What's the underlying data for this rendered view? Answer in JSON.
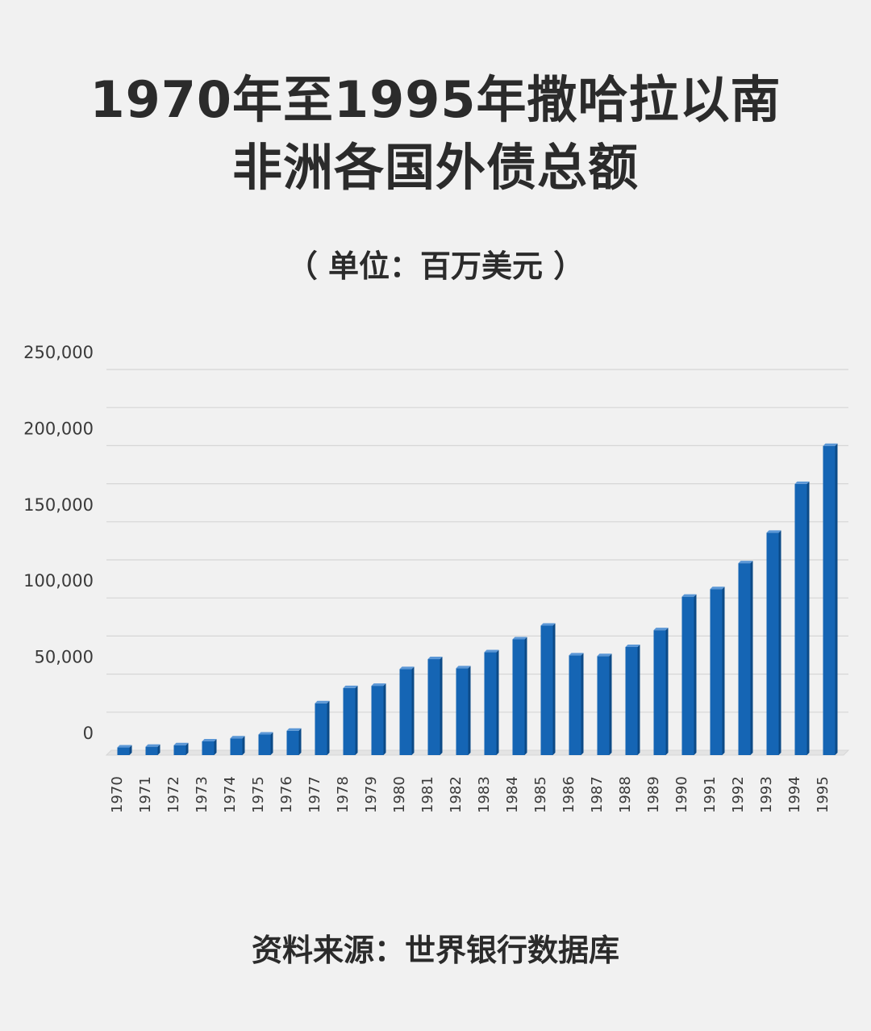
{
  "title_line1": "1970年至1995年撒哈拉以南",
  "title_line2": "非洲各国外债总额",
  "subtitle": "（ 单位：百万美元 ）",
  "source": "资料来源：世界银行数据库",
  "colors": {
    "background": "#f1f1f1",
    "bar_front": "#1565b4",
    "bar_side": "#0c4a87",
    "bar_top": "#5b97d6",
    "grid": "#d6d6d6",
    "text": "#2b2b2b"
  },
  "chart_data": {
    "type": "bar",
    "title": "1970年至1995年撒哈拉以南非洲各国外债总额",
    "subtitle": "（ 单位：百万美元 ）",
    "xlabel": "",
    "ylabel": "",
    "ylim": [
      0,
      250000
    ],
    "grid": true,
    "yticks": [
      0,
      50000,
      100000,
      150000,
      200000,
      250000
    ],
    "ytick_labels": [
      "0",
      "50,000",
      "100,000",
      "150,000",
      "200,000",
      "250,000"
    ],
    "categories": [
      "1970",
      "1971",
      "1972",
      "1973",
      "1974",
      "1975",
      "1976",
      "1977",
      "1978",
      "1979",
      "1980",
      "1981",
      "1982",
      "1983",
      "1984",
      "1985",
      "1986",
      "1987",
      "1988",
      "1989",
      "1990",
      "1991",
      "1992",
      "1993",
      "1994",
      "1995"
    ],
    "values": [
      5000,
      5500,
      6500,
      9000,
      11000,
      13500,
      16000,
      34000,
      44000,
      45500,
      56500,
      63000,
      57000,
      67500,
      76000,
      85000,
      65500,
      65000,
      71000,
      82000,
      104000,
      109000,
      126000,
      146000,
      178000,
      203000
    ]
  }
}
